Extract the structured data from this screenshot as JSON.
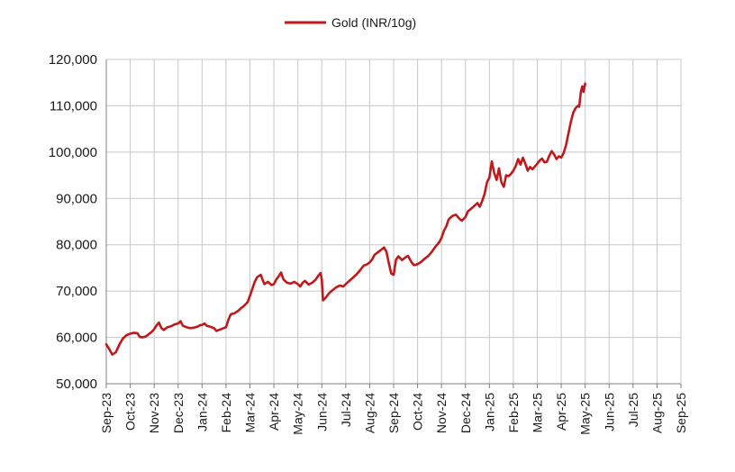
{
  "chart_data": {
    "type": "line",
    "title": "",
    "xlabel": "",
    "ylabel": "",
    "legend": {
      "position": "top-center",
      "label": "Gold (INR/10g)"
    },
    "grid": true,
    "colors": {
      "series": "#c0191c",
      "grid": "#c8c8c8",
      "axis": "#808080"
    },
    "ylim": [
      50000,
      120000
    ],
    "y_ticks": [
      {
        "value": 50000,
        "label": "50,000"
      },
      {
        "value": 60000,
        "label": "60,000"
      },
      {
        "value": 70000,
        "label": "70,000"
      },
      {
        "value": 80000,
        "label": "80,000"
      },
      {
        "value": 90000,
        "label": "90,000"
      },
      {
        "value": 100000,
        "label": "100,000"
      },
      {
        "value": 110000,
        "label": "110,000"
      },
      {
        "value": 120000,
        "label": "120,000"
      }
    ],
    "x_ticks": [
      "Sep-23",
      "Oct-23",
      "Nov-23",
      "Dec-23",
      "Jan-24",
      "Feb-24",
      "Mar-24",
      "Apr-24",
      "May-24",
      "Jun-24",
      "Jul-24",
      "Aug-24",
      "Sep-24",
      "Oct-24",
      "Nov-24",
      "Dec-24",
      "Jan-25",
      "Feb-25",
      "Mar-25",
      "Apr-25",
      "May-25",
      "Jun-25",
      "Jul-25",
      "Aug-25",
      "Sep-25"
    ],
    "series": [
      {
        "name": "Gold (INR/10g)",
        "points": [
          [
            0.0,
            58500
          ],
          [
            0.12,
            57500
          ],
          [
            0.25,
            56300
          ],
          [
            0.4,
            56800
          ],
          [
            0.55,
            58500
          ],
          [
            0.7,
            59800
          ],
          [
            0.85,
            60500
          ],
          [
            1.0,
            60800
          ],
          [
            1.15,
            61000
          ],
          [
            1.3,
            60900
          ],
          [
            1.4,
            60100
          ],
          [
            1.5,
            60000
          ],
          [
            1.65,
            60200
          ],
          [
            1.8,
            60800
          ],
          [
            1.9,
            61200
          ],
          [
            2.0,
            61800
          ],
          [
            2.1,
            62600
          ],
          [
            2.2,
            63200
          ],
          [
            2.3,
            62000
          ],
          [
            2.4,
            61600
          ],
          [
            2.55,
            62200
          ],
          [
            2.7,
            62400
          ],
          [
            2.85,
            62800
          ],
          [
            3.0,
            63000
          ],
          [
            3.1,
            63500
          ],
          [
            3.2,
            62500
          ],
          [
            3.35,
            62200
          ],
          [
            3.5,
            62000
          ],
          [
            3.65,
            62100
          ],
          [
            3.8,
            62300
          ],
          [
            3.9,
            62600
          ],
          [
            4.0,
            62700
          ],
          [
            4.1,
            63000
          ],
          [
            4.2,
            62500
          ],
          [
            4.35,
            62300
          ],
          [
            4.5,
            62000
          ],
          [
            4.6,
            61400
          ],
          [
            4.75,
            61700
          ],
          [
            4.9,
            62000
          ],
          [
            5.0,
            62200
          ],
          [
            5.1,
            63800
          ],
          [
            5.2,
            65000
          ],
          [
            5.35,
            65200
          ],
          [
            5.5,
            65700
          ],
          [
            5.6,
            66200
          ],
          [
            5.75,
            66800
          ],
          [
            5.9,
            67600
          ],
          [
            6.0,
            69000
          ],
          [
            6.1,
            70500
          ],
          [
            6.2,
            72000
          ],
          [
            6.3,
            73000
          ],
          [
            6.45,
            73500
          ],
          [
            6.6,
            71500
          ],
          [
            6.75,
            72000
          ],
          [
            6.9,
            71300
          ],
          [
            7.0,
            71500
          ],
          [
            7.1,
            72500
          ],
          [
            7.2,
            73200
          ],
          [
            7.3,
            74000
          ],
          [
            7.4,
            72500
          ],
          [
            7.55,
            71800
          ],
          [
            7.7,
            71600
          ],
          [
            7.85,
            72000
          ],
          [
            8.0,
            71500
          ],
          [
            8.1,
            71000
          ],
          [
            8.2,
            71800
          ],
          [
            8.3,
            72200
          ],
          [
            8.45,
            71400
          ],
          [
            8.6,
            71800
          ],
          [
            8.75,
            72500
          ],
          [
            8.85,
            73300
          ],
          [
            8.95,
            73900
          ],
          [
            9.0,
            72500
          ],
          [
            9.05,
            68000
          ],
          [
            9.15,
            68500
          ],
          [
            9.3,
            69500
          ],
          [
            9.45,
            70200
          ],
          [
            9.6,
            70800
          ],
          [
            9.75,
            71200
          ],
          [
            9.9,
            71000
          ],
          [
            10.0,
            71500
          ],
          [
            10.15,
            72200
          ],
          [
            10.3,
            72900
          ],
          [
            10.45,
            73600
          ],
          [
            10.6,
            74500
          ],
          [
            10.75,
            75500
          ],
          [
            10.9,
            75800
          ],
          [
            11.0,
            76200
          ],
          [
            11.1,
            76800
          ],
          [
            11.2,
            77800
          ],
          [
            11.35,
            78400
          ],
          [
            11.5,
            79000
          ],
          [
            11.6,
            79400
          ],
          [
            11.7,
            78500
          ],
          [
            11.8,
            76000
          ],
          [
            11.9,
            73800
          ],
          [
            12.0,
            73500
          ],
          [
            12.1,
            76800
          ],
          [
            12.2,
            77500
          ],
          [
            12.35,
            76700
          ],
          [
            12.5,
            77300
          ],
          [
            12.6,
            77600
          ],
          [
            12.75,
            76200
          ],
          [
            12.85,
            75600
          ],
          [
            13.0,
            75800
          ],
          [
            13.15,
            76300
          ],
          [
            13.3,
            77000
          ],
          [
            13.45,
            77600
          ],
          [
            13.6,
            78500
          ],
          [
            13.75,
            79600
          ],
          [
            13.9,
            80500
          ],
          [
            14.0,
            81500
          ],
          [
            14.1,
            83000
          ],
          [
            14.2,
            84000
          ],
          [
            14.3,
            85500
          ],
          [
            14.45,
            86200
          ],
          [
            14.6,
            86500
          ],
          [
            14.75,
            85600
          ],
          [
            14.85,
            85200
          ],
          [
            15.0,
            86000
          ],
          [
            15.1,
            87200
          ],
          [
            15.2,
            87600
          ],
          [
            15.35,
            88300
          ],
          [
            15.5,
            89000
          ],
          [
            15.6,
            88200
          ],
          [
            15.7,
            89500
          ],
          [
            15.8,
            91000
          ],
          [
            15.9,
            93500
          ],
          [
            16.0,
            94500
          ],
          [
            16.1,
            98000
          ],
          [
            16.2,
            95500
          ],
          [
            16.3,
            94000
          ],
          [
            16.4,
            96500
          ],
          [
            16.5,
            93500
          ],
          [
            16.6,
            92500
          ],
          [
            16.7,
            95000
          ],
          [
            16.8,
            94800
          ],
          [
            16.9,
            95300
          ],
          [
            17.0,
            96000
          ],
          [
            17.1,
            97000
          ],
          [
            17.2,
            98500
          ],
          [
            17.3,
            97300
          ],
          [
            17.4,
            98800
          ],
          [
            17.5,
            97500
          ],
          [
            17.6,
            96000
          ],
          [
            17.7,
            96800
          ],
          [
            17.8,
            96300
          ],
          [
            17.9,
            96900
          ],
          [
            18.0,
            97500
          ],
          [
            18.1,
            98200
          ],
          [
            18.2,
            98600
          ],
          [
            18.3,
            97800
          ],
          [
            18.4,
            97900
          ],
          [
            18.5,
            99200
          ],
          [
            18.6,
            100200
          ],
          [
            18.7,
            99500
          ],
          [
            18.8,
            98500
          ],
          [
            18.9,
            99100
          ],
          [
            19.0,
            98800
          ],
          [
            19.1,
            99800
          ],
          [
            19.2,
            101500
          ],
          [
            19.3,
            104000
          ],
          [
            19.4,
            106500
          ],
          [
            19.5,
            108500
          ],
          [
            19.6,
            109500
          ],
          [
            19.7,
            110000
          ],
          [
            19.75,
            109800
          ],
          [
            19.82,
            113000
          ],
          [
            19.88,
            114200
          ],
          [
            19.93,
            113000
          ],
          [
            20.0,
            114800
          ]
        ]
      }
    ]
  }
}
